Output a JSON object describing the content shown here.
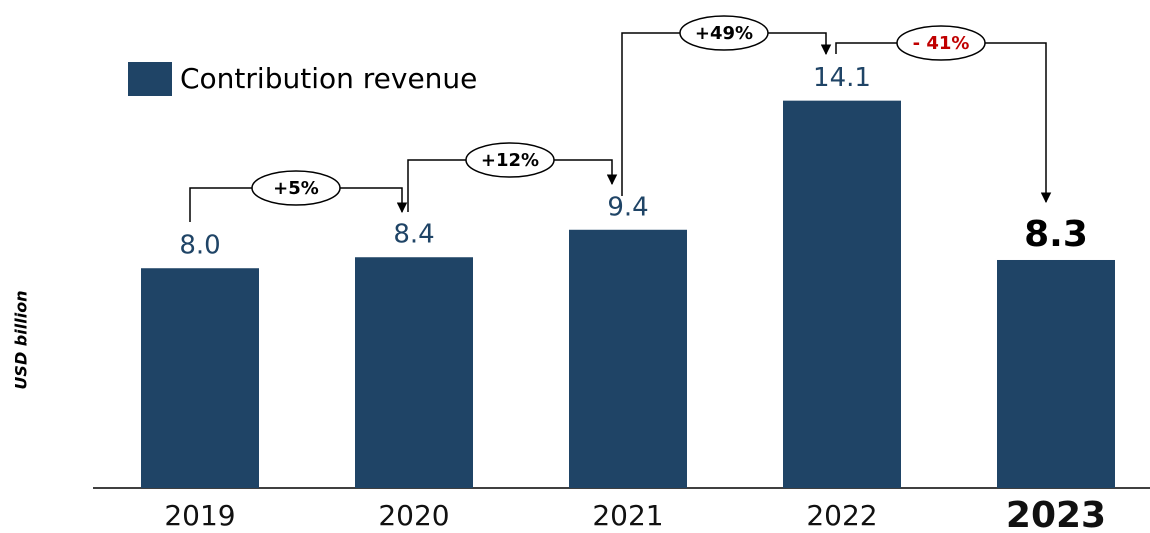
{
  "chart_data": {
    "type": "bar",
    "y_label": "USD billion",
    "categories": [
      "2019",
      "2020",
      "2021",
      "2022",
      "2023"
    ],
    "series": [
      {
        "name": "Contribution revenue",
        "color": "#1f4466",
        "values": [
          8.0,
          8.4,
          9.4,
          14.1,
          8.3
        ],
        "value_labels": [
          "8.0",
          "8.4",
          "9.4",
          "14.1",
          "8.3"
        ]
      }
    ],
    "annotations": [
      "+5%",
      "+12%",
      "+49%",
      "- 41%"
    ],
    "annotation_colors": [
      "#000000",
      "#000000",
      "#000000",
      "#c00000"
    ],
    "ylim": [
      0,
      17.4
    ]
  }
}
